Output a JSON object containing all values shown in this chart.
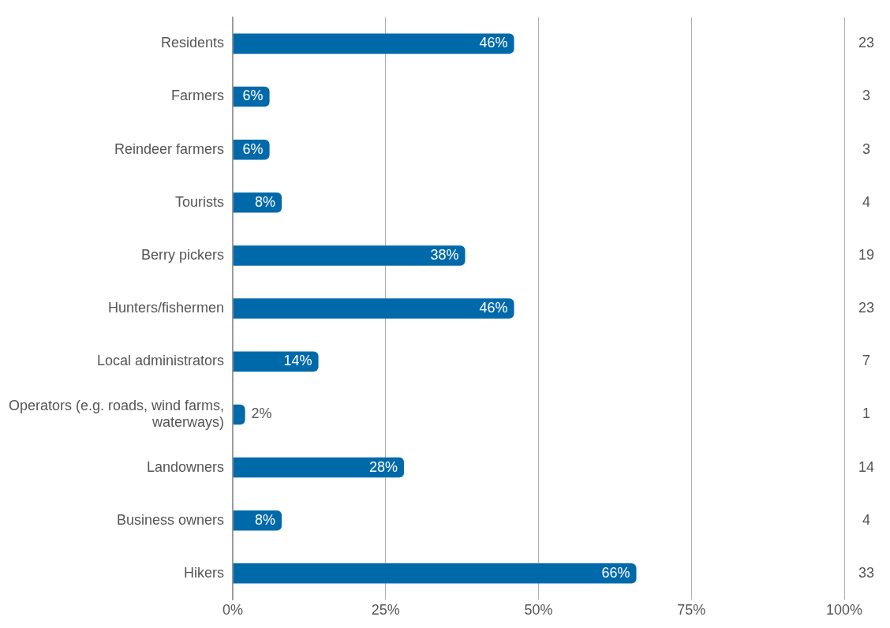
{
  "chart_data": {
    "type": "bar",
    "orientation": "horizontal",
    "categories": [
      "Residents",
      "Farmers",
      "Reindeer farmers",
      "Tourists",
      "Berry pickers",
      "Hunters/fishermen",
      "Local administrators",
      "Operators (e.g. roads, wind farms, waterways)",
      "Landowners",
      "Business owners",
      "Hikers"
    ],
    "values": [
      46,
      6,
      6,
      8,
      38,
      46,
      14,
      2,
      28,
      8,
      66
    ],
    "color": "#0069aa",
    "xlim": [
      0,
      100
    ],
    "xticks": [
      {
        "value": 0,
        "label": "0%"
      },
      {
        "value": 25,
        "label": "25%"
      },
      {
        "value": 50,
        "label": "50%"
      },
      {
        "value": 75,
        "label": "75%"
      },
      {
        "value": 100,
        "label": "100%"
      }
    ],
    "value_labels": [
      "46%",
      "6%",
      "6%",
      "8%",
      "38%",
      "46%",
      "14%",
      "2%",
      "28%",
      "8%",
      "66%"
    ],
    "annotations": [
      "23",
      "3",
      "3",
      "4",
      "19",
      "23",
      "7",
      "1",
      "14",
      "4",
      "33"
    ],
    "grid": "x",
    "legend": false
  }
}
